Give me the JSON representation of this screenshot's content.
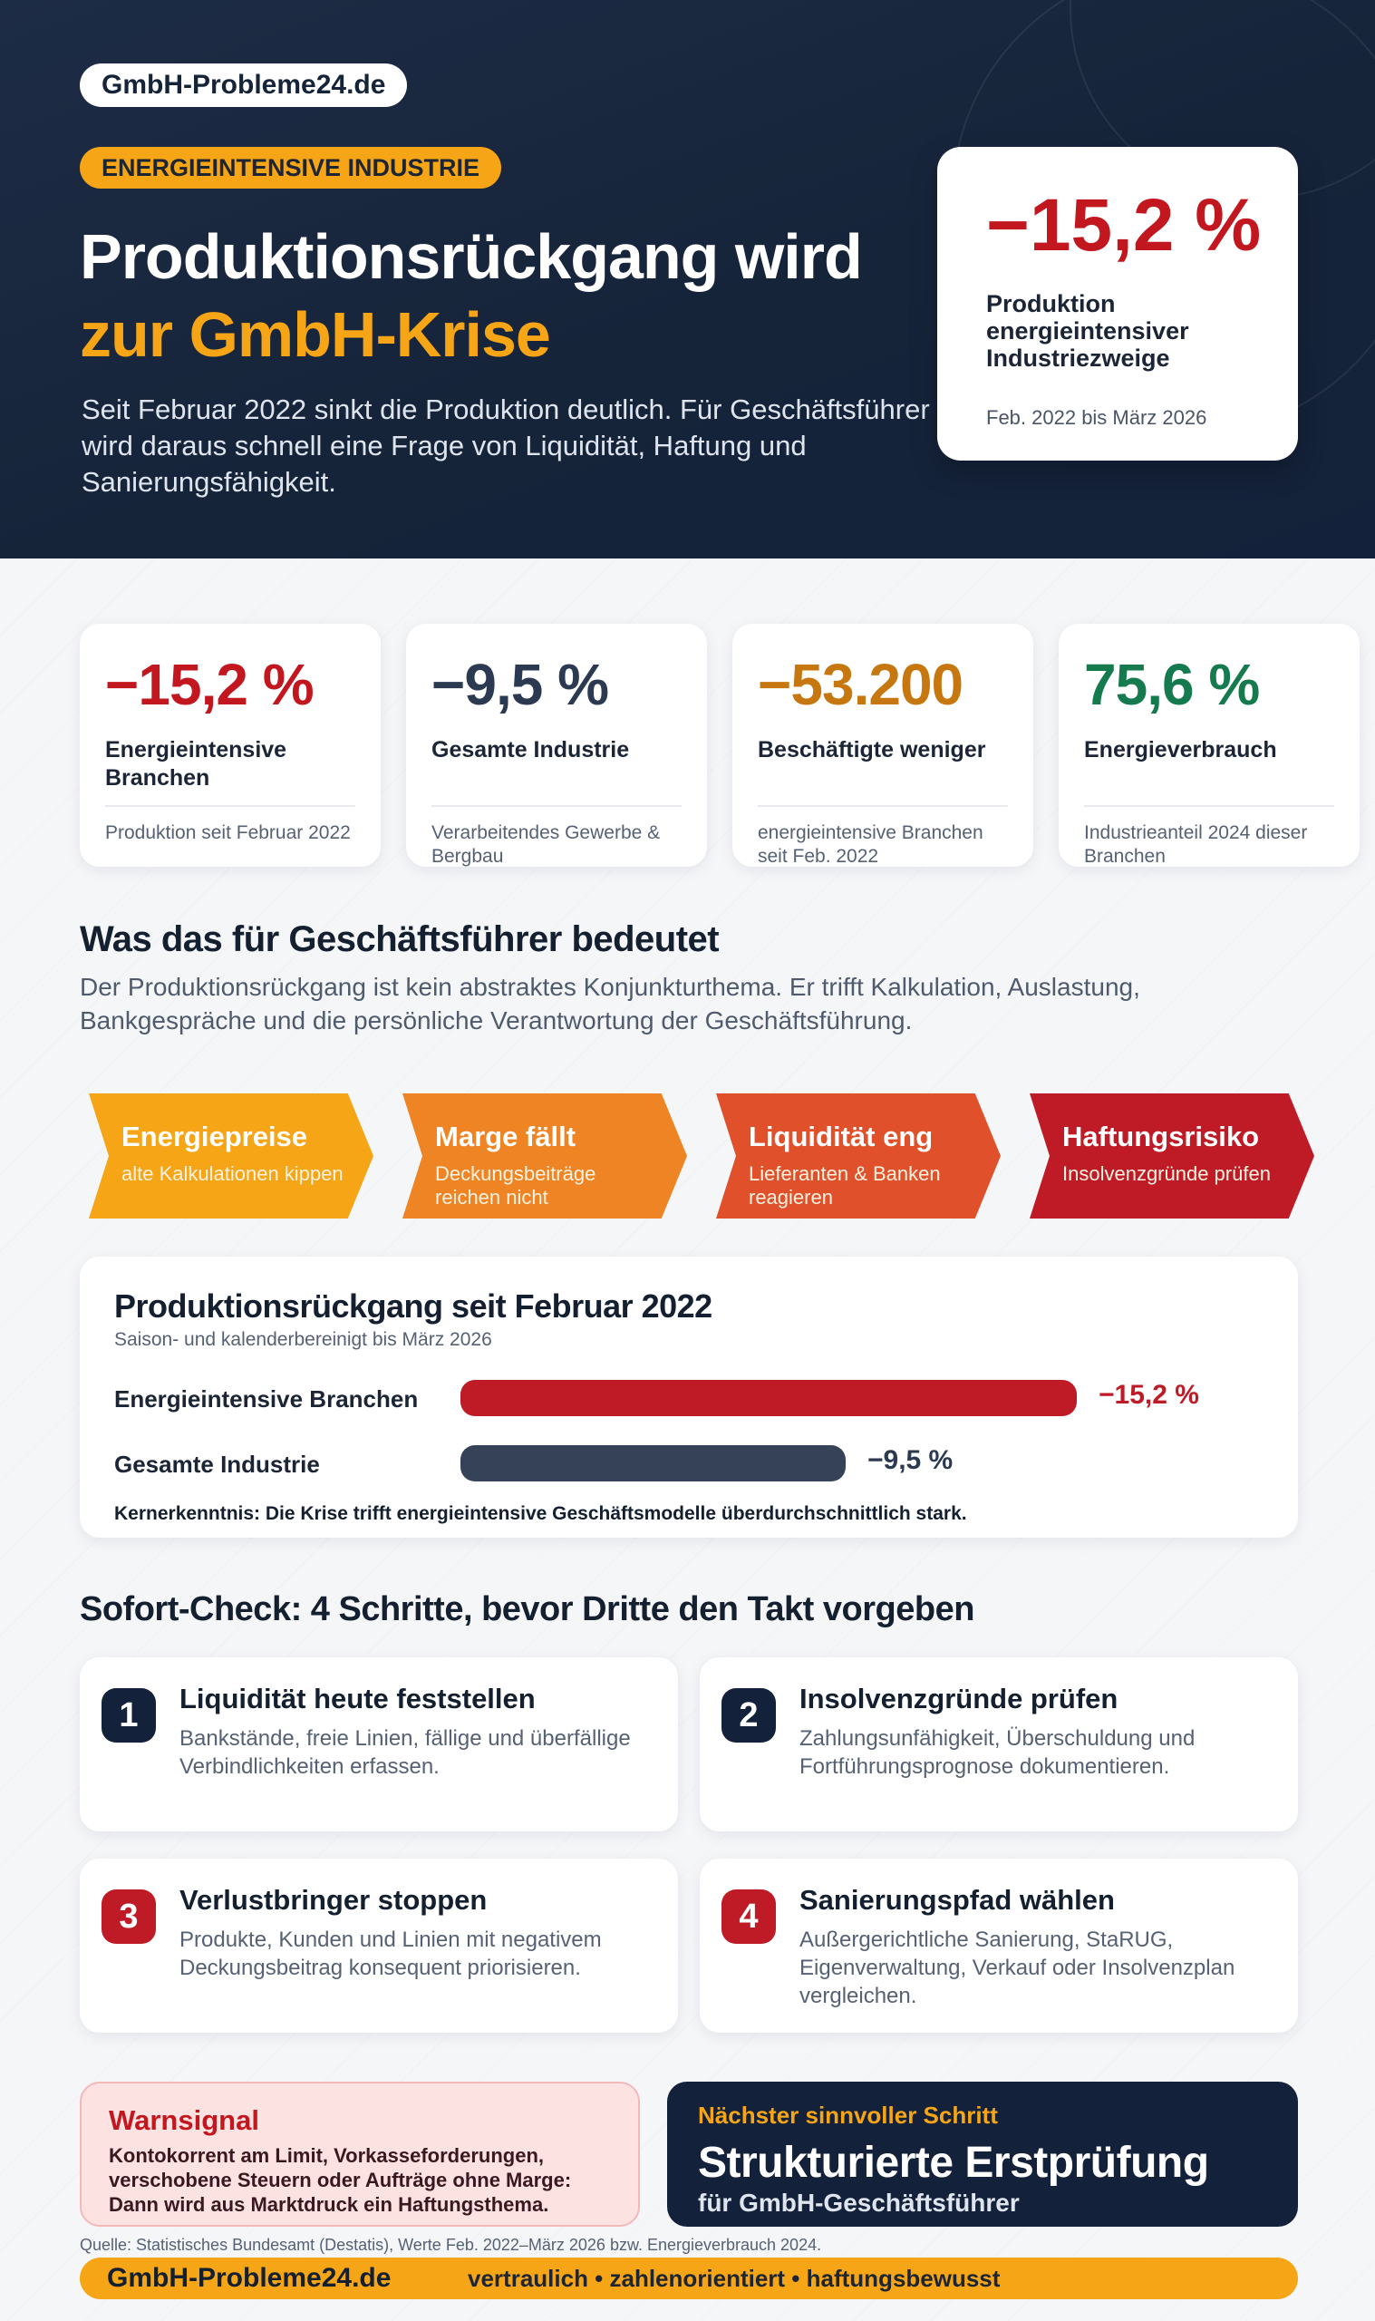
{
  "brand": "GmbH-Probleme24.de",
  "tag": "ENERGIEINTENSIVE INDUSTRIE",
  "hero": {
    "title_line1": "Produktionsrückgang wird",
    "title_line2": "zur GmbH-Krise",
    "subtitle": "Seit Februar 2022 sinkt die Produktion deutlich. Für Geschäftsführer wird daraus schnell eine Frage von Liquidität, Haftung und Sanierungsfähigkeit.",
    "card": {
      "value": "−15,2 %",
      "label": "Produktion energieintensiver Industriezweige",
      "period": "Feb. 2022 bis März 2026"
    }
  },
  "stats": [
    {
      "value": "−15,2 %",
      "title": "Energieintensive Branchen",
      "note": "Produktion seit Februar 2022",
      "color": "#c3171f"
    },
    {
      "value": "−9,5 %",
      "title": "Gesamte Industrie",
      "note": "Verarbeitendes Gewerbe & Bergbau",
      "color": "#2c3a51"
    },
    {
      "value": "−53.200",
      "title": "Beschäftigte weniger",
      "note": "energieintensive Branchen seit Feb. 2022",
      "color": "#c77710"
    },
    {
      "value": "75,6 %",
      "title": "Energieverbrauch",
      "note": "Industrieanteil 2024 dieser Branchen",
      "color": "#167a4f"
    }
  ],
  "meaning": {
    "heading": "Was das für Geschäftsführer bedeutet",
    "text": "Der Produktionsrückgang ist kein abstraktes Konjunkturthema. Er trifft Kalkulation, Auslastung, Bankgespräche und die persönliche Verantwortung der Geschäftsführung."
  },
  "chain": [
    {
      "title": "Energiepreise",
      "text": "alte Kalkulationen kippen",
      "color": "#f5a516"
    },
    {
      "title": "Marge fällt",
      "text": "Deckungsbeiträge reichen nicht",
      "color": "#ee8424"
    },
    {
      "title": "Liquidität eng",
      "text": "Lieferanten & Banken reagieren",
      "color": "#e0502a"
    },
    {
      "title": "Haftungsrisiko",
      "text": "Insolvenzgründe prüfen",
      "color": "#bf1b26"
    }
  ],
  "chart": {
    "title": "Produktionsrückgang seit Februar 2022",
    "subtitle": "Saison- und kalenderbereinigt bis März 2026",
    "rows": [
      {
        "label": "Energieintensive Branchen",
        "value_label": "−15,2 %"
      },
      {
        "label": "Gesamte Industrie",
        "value_label": "−9,5 %"
      }
    ],
    "insight": "Kernerkenntnis: Die Krise trifft energieintensive Geschäftsmodelle überdurchschnittlich stark."
  },
  "chart_data": {
    "type": "bar",
    "categories": [
      "Energieintensive Branchen",
      "Gesamte Industrie"
    ],
    "values": [
      -15.2,
      -9.5
    ],
    "title": "Produktionsrückgang seit Februar 2022",
    "subtitle": "Saison- und kalenderbereinigt bis März 2026",
    "xlabel": "",
    "ylabel": "",
    "colors": [
      "#bf1b26",
      "#354257"
    ]
  },
  "checks": {
    "heading": "Sofort-Check: 4 Schritte, bevor Dritte den Takt vorgeben",
    "steps": [
      {
        "num": "1",
        "title": "Liquidität heute feststellen",
        "text": "Bankstände, freie Linien, fällige und überfällige Verbindlichkeiten erfassen.",
        "color": "#13213a"
      },
      {
        "num": "2",
        "title": "Insolvenzgründe prüfen",
        "text": "Zahlungsunfähigkeit, Überschuldung und Fortführungsprognose dokumentieren.",
        "color": "#13213a"
      },
      {
        "num": "3",
        "title": "Verlustbringer stoppen",
        "text": "Produkte, Kunden und Linien mit negativem Deckungsbeitrag konsequent priorisieren.",
        "color": "#bf1b26"
      },
      {
        "num": "4",
        "title": "Sanierungspfad wählen",
        "text": "Außergerichtliche Sanierung, StaRUG, Eigenverwaltung, Verkauf oder Insolvenzplan vergleichen.",
        "color": "#bf1b26"
      }
    ]
  },
  "warning": {
    "title": "Warnsignal",
    "text": "Kontokorrent am Limit, Vorkasseforderungen, verschobene Steuern oder Aufträge ohne Marge: Dann wird aus Marktdruck ein Haftungsthema."
  },
  "next_step": {
    "kicker": "Nächster sinnvoller Schritt",
    "title": "Strukturierte Erstprüfung",
    "subtitle": "für GmbH-Geschäftsführer"
  },
  "source": "Quelle: Statistisches Bundesamt (Destatis), Werte Feb. 2022–März 2026 bzw. Energieverbrauch 2024.",
  "footer": {
    "brand": "GmbH-Probleme24.de",
    "claim": "vertraulich • zahlenorientiert • haftungsbewusst"
  }
}
